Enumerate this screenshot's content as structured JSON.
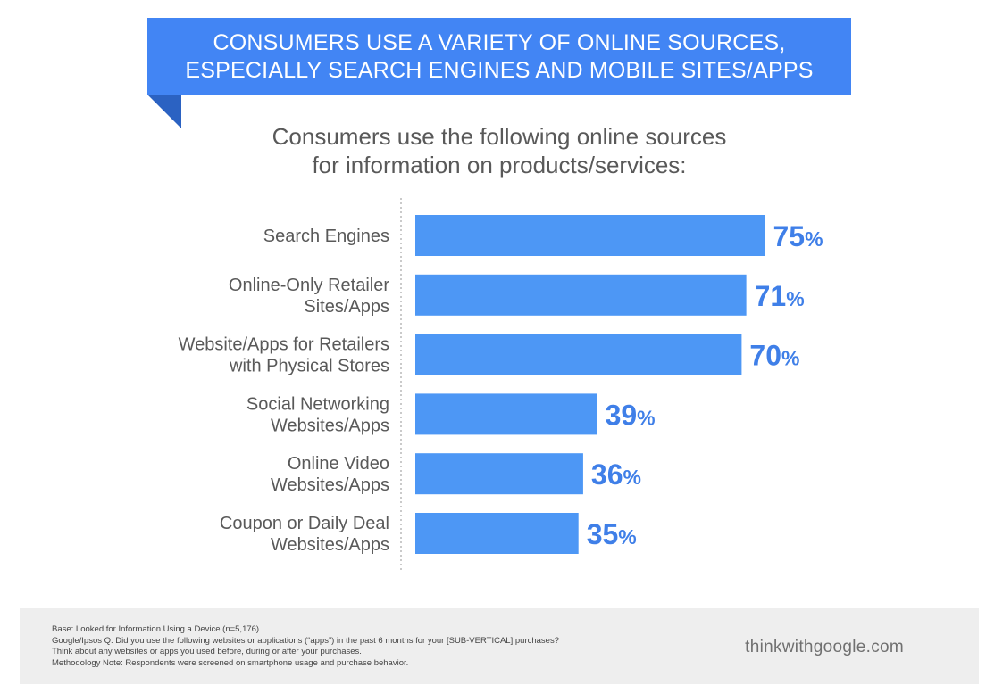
{
  "banner": {
    "line1": "CONSUMERS USE A VARIETY OF ONLINE SOURCES,",
    "line2": "ESPECIALLY SEARCH ENGINES AND MOBILE SITES/APPS"
  },
  "colors": {
    "accent": "#4285f4",
    "bar": "#4d97f5",
    "value_text": "#3f7fe8"
  },
  "chart_data": {
    "type": "bar",
    "orientation": "horizontal",
    "title": "Consumers use the following online sources for information on products/services:",
    "title_lines": [
      "Consumers use the following online sources",
      "for information on products/services:"
    ],
    "categories": [
      [
        "Search Engines"
      ],
      [
        "Online-Only Retailer",
        "Sites/Apps"
      ],
      [
        "Website/Apps for Retailers",
        "with Physical Stores"
      ],
      [
        "Social Networking",
        "Websites/Apps"
      ],
      [
        "Online Video",
        "Websites/Apps"
      ],
      [
        "Coupon or Daily Deal",
        "Websites/Apps"
      ]
    ],
    "values": [
      75,
      71,
      70,
      39,
      36,
      35
    ],
    "unit": "%",
    "xlim": [
      0,
      100
    ],
    "grid": false,
    "legend": "none"
  },
  "footer": {
    "notes": [
      "Base: Looked for Information Using a Device (n=5,176)",
      "Google/Ipsos Q. Did you use the following websites or applications (“apps”) in the past 6 months for your [SUB-VERTICAL] purchases?",
      "Think about any websites or apps you used before, during or after your purchases.",
      "Methodology Note: Respondents were screened on smartphone usage and purchase behavior."
    ],
    "brand": "thinkwithgoogle.com"
  }
}
